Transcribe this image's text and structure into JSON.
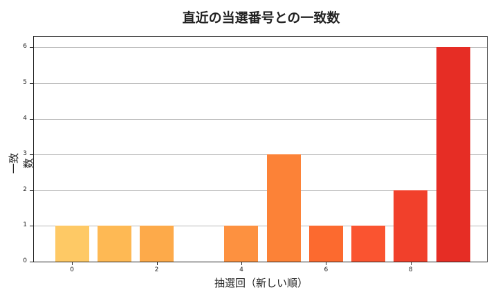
{
  "chart_data": {
    "type": "bar",
    "title": "直近の当選番号との一致数",
    "xlabel": "抽選回（新しい順）",
    "ylabel": "一致数",
    "categories": [
      0,
      1,
      2,
      3,
      4,
      5,
      6,
      7,
      8,
      9
    ],
    "values": [
      1,
      1,
      1,
      0,
      1,
      3,
      1,
      1,
      2,
      6
    ],
    "colors": [
      "#fec965",
      "#feb954",
      "#fdaa4a",
      "#fd9a43",
      "#fd9140",
      "#fc8237",
      "#fc6a2f",
      "#fa5430",
      "#f1402b",
      "#e62d25"
    ],
    "xticks": [
      0,
      2,
      4,
      6,
      8
    ],
    "yticks": [
      0,
      1,
      2,
      3,
      4,
      5,
      6
    ],
    "ylim": [
      0,
      6.3
    ],
    "xlim": [
      -0.9,
      9.8
    ],
    "grid": "y"
  }
}
